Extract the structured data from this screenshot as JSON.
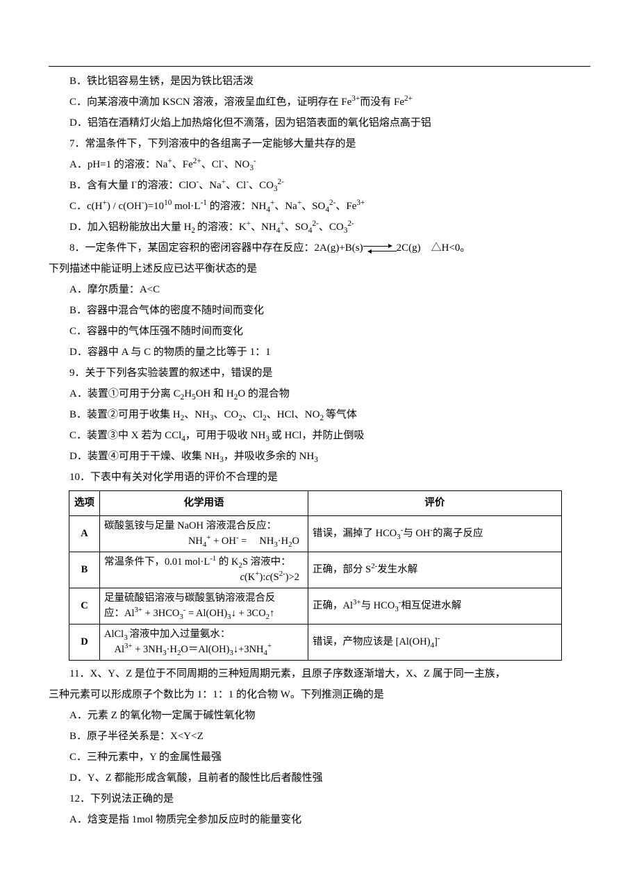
{
  "q6": {
    "B": "B．铁比铝容易生锈，是因为铁比铝活泼",
    "C_pre": "C．向某溶液中滴加 KSCN 溶液，溶液呈血红色，证明存在 Fe",
    "C_mid": "而没有 Fe",
    "D": "D．铝箔在酒精灯火焰上加热熔化但不滴落，因为铝箔表面的氧化铝熔点高于铝"
  },
  "q7": {
    "stem": "7．常温条件下，下列溶液中的各组离子一定能够大量共存的是",
    "A_pre": "A．pH=1 的溶液：Na",
    "A_mid1": "、Fe",
    "A_mid2": "、Cl",
    "A_mid3": "、NO",
    "B_pre": "B．含有大量 I",
    "B_mid0": "的溶液：ClO",
    "B_mid1": "、Na",
    "B_mid2": "、Cl",
    "B_mid3": "、CO",
    "C_pre": "C．c(H",
    "C_mid1": ") / c(OH",
    "C_mid2": ")=10",
    "C_mid3": " mol·L",
    "C_mid4": " 的溶液：NH",
    "C_mid5": "、Na",
    "C_mid6": "、SO",
    "C_mid7": "、Fe",
    "D_pre": "D．加入铝粉能放出大量 H",
    "D_mid0": "的溶液：K",
    "D_mid1": "、NH",
    "D_mid2": "、SO",
    "D_mid3": "、CO"
  },
  "q8": {
    "stem_pre": "8．一定条件下，某固定容积的密闭容器中存在反应：2A(g)+B(s)",
    "stem_post": "2C(g)　△H<0。",
    "stem2": "下列描述中能证明上述反应已达平衡状态的是",
    "A": "A．摩尔质量：A<C",
    "B": "B．容器中混合气体的密度不随时间而变化",
    "C": "C．容器中的气体压强不随时间而变化",
    "D": "D．容器中 A 与 C 的物质的量之比等于 1：1"
  },
  "q9": {
    "stem": "9．关于下列各实验装置的叙述中，错误的是",
    "A_pre": "A．装置①可用于分离 C",
    "A_mid1": "H",
    "A_mid2": "OH 和 H",
    "A_mid3": "O 的混合物",
    "B_pre": "B．装置②可用于收集 H",
    "B_mid1": "、NH",
    "B_mid2": "、CO",
    "B_mid3": "、Cl",
    "B_mid4": "、HCl、NO",
    "B_mid5": "等气体",
    "C_pre": "C．装置③中 X 若为 CCl",
    "C_mid1": "，可用于吸收 NH",
    "C_mid2": "或 HCl，并防止倒吸",
    "D_pre": "D．装置④可用于干燥、收集 NH",
    "D_mid1": "，并吸收多余的 NH"
  },
  "q10": {
    "stem": "10．下表中有关对化学用语的评价不合理的是",
    "header_opt": "选项",
    "header_term": "化学用语",
    "header_eval": "评价",
    "rowA": {
      "opt": "A",
      "term_l1": "碳酸氢铵与足量 NaOH 溶液混合反应：",
      "eval_pre": "错误，漏掉了 HCO",
      "eval_mid": "与 OH",
      "eval_post": "的离子反应"
    },
    "rowB": {
      "opt": "B",
      "term_l1_pre": "常温条件下，0.01 mol·L",
      "term_l1_post": " 的 K",
      "term_l1_end": "S 溶液中：",
      "eval_pre": "正确，部分 S",
      "eval_post": "发生水解"
    },
    "rowC": {
      "opt": "C",
      "term_l1": "足量硫酸铝溶液与碳酸氢钠溶液混合反",
      "term_l2_pre": "应：Al",
      "term_l2_mid1": " + 3HCO",
      "term_l2_mid2": " = Al(OH)",
      "term_l2_mid3": "↓ + 3CO",
      "term_l2_end": "↑",
      "eval_pre": "正确，Al",
      "eval_mid": "与 HCO",
      "eval_post": "相互促进水解"
    },
    "rowD": {
      "opt": "D",
      "term_l1_pre": "AlCl",
      "term_l1_post": "溶液中加入过量氨水：",
      "eval_pre": "错误，产物应该是 [Al(OH)",
      "eval_post": "]"
    }
  },
  "q11": {
    "stem1": "11．X、Y、Z 是位于不同周期的三种短周期元素，且原子序数逐渐增大，X、Z 属于同一主族，",
    "stem2": "三种元素可以形成原子个数比为 1：1：1 的化合物 W。下列推测正确的是",
    "A": "A．元素 Z 的氧化物一定属于碱性氧化物",
    "B": "B．原子半径关系是：X<Y<Z",
    "C": "C．三种元素中，Y 的金属性最强",
    "D": "D．Y、Z 都能形成含氧酸，且前者的酸性比后者酸性强"
  },
  "q12": {
    "stem": "12．下列说法正确的是",
    "A": "A．焓变是指 1mol 物质完全参加反应时的能量变化"
  }
}
